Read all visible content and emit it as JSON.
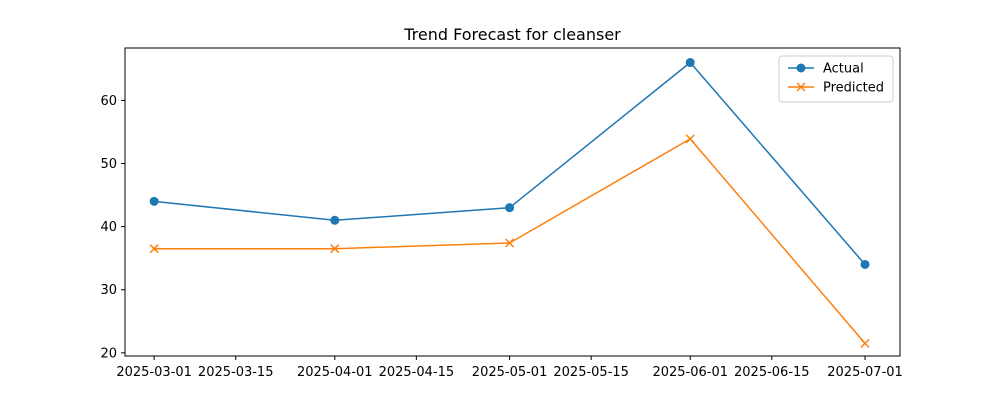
{
  "chart_data": {
    "type": "line",
    "title": "Trend Forecast for cleanser",
    "xlabel": "",
    "ylabel": "",
    "x_dates": [
      "2025-03-01",
      "2025-04-01",
      "2025-05-01",
      "2025-06-01",
      "2025-07-01"
    ],
    "x_ticks": [
      "2025-03-01",
      "2025-03-15",
      "2025-04-01",
      "2025-04-15",
      "2025-05-01",
      "2025-05-15",
      "2025-06-01",
      "2025-06-15",
      "2025-07-01"
    ],
    "y_ticks": [
      20,
      30,
      40,
      50,
      60
    ],
    "xlim": [
      "2025-02-24",
      "2025-07-07"
    ],
    "ylim": [
      19.5,
      68.3
    ],
    "grid": false,
    "legend_position": "upper-right",
    "series": [
      {
        "name": "Actual",
        "color": "#1f77b4",
        "marker": "circle",
        "values": [
          44,
          41,
          43,
          66,
          34
        ]
      },
      {
        "name": "Predicted",
        "color": "#ff7f0e",
        "marker": "x",
        "values": [
          36.5,
          36.5,
          37.4,
          53.9,
          21.5
        ]
      }
    ]
  }
}
